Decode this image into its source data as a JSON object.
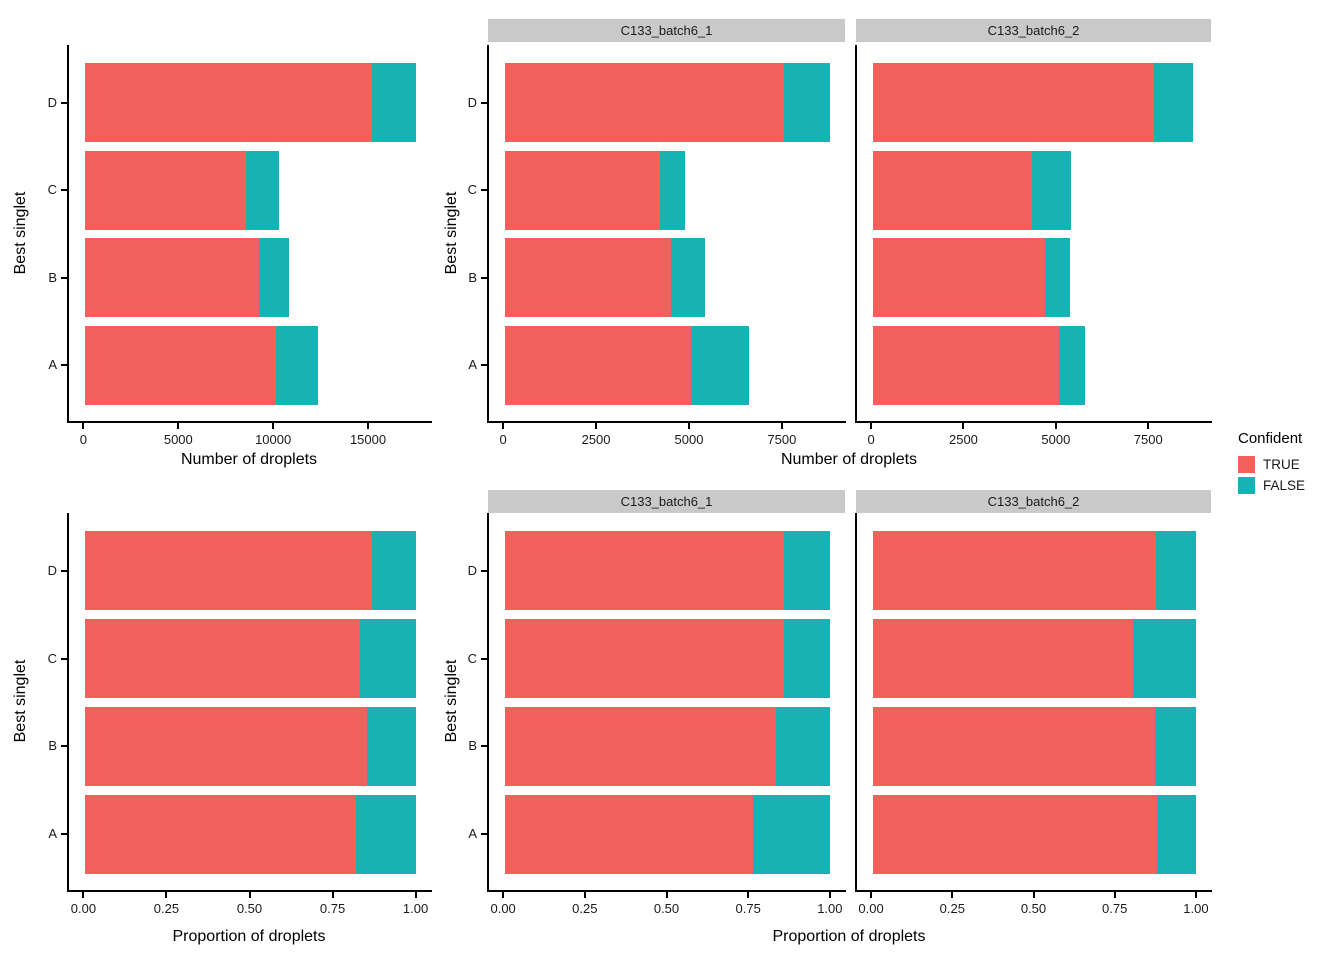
{
  "palette": {
    "true": "#F4605C",
    "false": "#18B2B5",
    "strip_bg": "#C9C9C9",
    "axis": "#000000"
  },
  "legend": {
    "title": "Confident",
    "items": [
      {
        "label": "TRUE",
        "color_key": "true"
      },
      {
        "label": "FALSE",
        "color_key": "false"
      }
    ]
  },
  "categories_top_to_bottom": [
    "D",
    "C",
    "B",
    "A"
  ],
  "chart_data": [
    {
      "type": "bar",
      "orientation": "horizontal",
      "stacked": true,
      "xlabel": "Number of droplets",
      "ylabel": "Best singlet",
      "series_order": [
        "TRUE",
        "FALSE"
      ],
      "xmax": 17505,
      "xticks": [
        {
          "value": 0,
          "label": "0"
        },
        {
          "value": 5000,
          "label": "5000"
        },
        {
          "value": 10000,
          "label": "10000"
        },
        {
          "value": 15000,
          "label": "15000"
        }
      ],
      "panels": [
        {
          "strip_label": "",
          "bars": [
            {
              "category": "D",
              "TRUE": 15205,
              "FALSE": 2300
            },
            {
              "category": "C",
              "TRUE": 8530,
              "FALSE": 1745
            },
            {
              "category": "B",
              "TRUE": 9190,
              "FALSE": 1580
            },
            {
              "category": "A",
              "TRUE": 10100,
              "FALSE": 2250
            }
          ]
        }
      ]
    },
    {
      "type": "bar",
      "orientation": "horizontal",
      "stacked": true,
      "xlabel": "Number of droplets",
      "ylabel": "Best singlet",
      "series_order": [
        "TRUE",
        "FALSE"
      ],
      "xmax": 8790,
      "xticks": [
        {
          "value": 0,
          "label": "0"
        },
        {
          "value": 2500,
          "label": "2500"
        },
        {
          "value": 5000,
          "label": "5000"
        },
        {
          "value": 7500,
          "label": "7500"
        }
      ],
      "panels": [
        {
          "strip_label": "C133_batch6_1",
          "bars": [
            {
              "category": "D",
              "TRUE": 7560,
              "FALSE": 1230
            },
            {
              "category": "C",
              "TRUE": 4190,
              "FALSE": 690
            },
            {
              "category": "B",
              "TRUE": 4500,
              "FALSE": 905
            },
            {
              "category": "A",
              "TRUE": 5030,
              "FALSE": 1560
            }
          ]
        },
        {
          "strip_label": "C133_batch6_2",
          "bars": [
            {
              "category": "D",
              "TRUE": 7645,
              "FALSE": 1070
            },
            {
              "category": "C",
              "TRUE": 4340,
              "FALSE": 1055
            },
            {
              "category": "B",
              "TRUE": 4690,
              "FALSE": 675
            },
            {
              "category": "A",
              "TRUE": 5070,
              "FALSE": 690
            }
          ]
        }
      ]
    },
    {
      "type": "bar",
      "orientation": "horizontal",
      "stacked": true,
      "xlabel": "Proportion of droplets",
      "ylabel": "Best singlet",
      "series_order": [
        "TRUE",
        "FALSE"
      ],
      "xmax": 1,
      "xticks": [
        {
          "value": 0,
          "label": "0.00"
        },
        {
          "value": 0.25,
          "label": "0.25"
        },
        {
          "value": 0.5,
          "label": "0.50"
        },
        {
          "value": 0.75,
          "label": "0.75"
        },
        {
          "value": 1,
          "label": "1.00"
        }
      ],
      "panels": [
        {
          "strip_label": "",
          "bars": [
            {
              "category": "D",
              "TRUE": 0.869,
              "FALSE": 0.131
            },
            {
              "category": "C",
              "TRUE": 0.83,
              "FALSE": 0.17
            },
            {
              "category": "B",
              "TRUE": 0.853,
              "FALSE": 0.147
            },
            {
              "category": "A",
              "TRUE": 0.818,
              "FALSE": 0.182
            }
          ]
        }
      ]
    },
    {
      "type": "bar",
      "orientation": "horizontal",
      "stacked": true,
      "xlabel": "Proportion of droplets",
      "ylabel": "Best singlet",
      "series_order": [
        "TRUE",
        "FALSE"
      ],
      "xmax": 1,
      "xticks": [
        {
          "value": 0,
          "label": "0.00"
        },
        {
          "value": 0.25,
          "label": "0.25"
        },
        {
          "value": 0.5,
          "label": "0.50"
        },
        {
          "value": 0.75,
          "label": "0.75"
        },
        {
          "value": 1,
          "label": "1.00"
        }
      ],
      "panels": [
        {
          "strip_label": "C133_batch6_1",
          "bars": [
            {
              "category": "D",
              "TRUE": 0.86,
              "FALSE": 0.14
            },
            {
              "category": "C",
              "TRUE": 0.859,
              "FALSE": 0.141
            },
            {
              "category": "B",
              "TRUE": 0.833,
              "FALSE": 0.167
            },
            {
              "category": "A",
              "TRUE": 0.763,
              "FALSE": 0.237
            }
          ]
        },
        {
          "strip_label": "C133_batch6_2",
          "bars": [
            {
              "category": "D",
              "TRUE": 0.877,
              "FALSE": 0.123
            },
            {
              "category": "C",
              "TRUE": 0.804,
              "FALSE": 0.196
            },
            {
              "category": "B",
              "TRUE": 0.874,
              "FALSE": 0.126
            },
            {
              "category": "A",
              "TRUE": 0.88,
              "FALSE": 0.12
            }
          ]
        }
      ]
    }
  ]
}
